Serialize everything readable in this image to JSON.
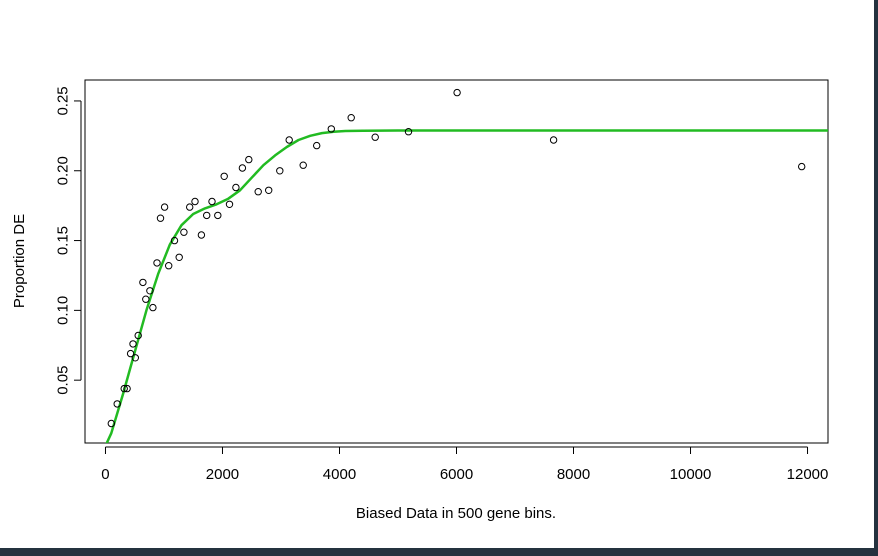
{
  "chart_data": {
    "type": "scatter",
    "title": "",
    "xlabel": "Biased Data in 500 gene bins.",
    "ylabel": "Proportion DE",
    "xlim": [
      -350,
      12350
    ],
    "ylim": [
      0.005,
      0.265
    ],
    "xticks": [
      0,
      2000,
      4000,
      6000,
      8000,
      10000,
      12000
    ],
    "xtick_labels": [
      "0",
      "2000",
      "4000",
      "6000",
      "8000",
      "10000",
      "12000"
    ],
    "yticks": [
      0.05,
      0.1,
      0.15,
      0.2,
      0.25
    ],
    "ytick_labels": [
      "0.05",
      "0.10",
      "0.15",
      "0.20",
      "0.25"
    ],
    "grid": false,
    "legend": "none",
    "colors": {
      "points": "#000000",
      "fit": "#22bb22",
      "axes": "#000000"
    },
    "series": [
      {
        "kind": "points",
        "x": [
          100,
          200,
          320,
          370,
          430,
          470,
          510,
          560,
          640,
          690,
          760,
          810,
          880,
          940,
          1010,
          1080,
          1180,
          1260,
          1340,
          1440,
          1530,
          1640,
          1730,
          1820,
          1920,
          2030,
          2120,
          2230,
          2340,
          2450,
          2610,
          2790,
          2980,
          3140,
          3380,
          3610,
          3860,
          4200,
          4610,
          5180,
          6010,
          7660,
          11900
        ],
        "y": [
          0.019,
          0.033,
          0.044,
          0.044,
          0.069,
          0.076,
          0.066,
          0.082,
          0.12,
          0.108,
          0.114,
          0.102,
          0.134,
          0.166,
          0.174,
          0.132,
          0.15,
          0.138,
          0.156,
          0.174,
          0.178,
          0.154,
          0.168,
          0.178,
          0.168,
          0.196,
          0.176,
          0.188,
          0.202,
          0.208,
          0.185,
          0.186,
          0.2,
          0.222,
          0.204,
          0.218,
          0.23,
          0.238,
          0.224,
          0.228,
          0.256,
          0.222,
          0.203
        ]
      },
      {
        "kind": "fit",
        "x": [
          0,
          100,
          300,
          500,
          700,
          900,
          1100,
          1300,
          1500,
          1700,
          1900,
          2100,
          2300,
          2500,
          2700,
          2900,
          3100,
          3300,
          3500,
          3700,
          3900,
          4100,
          4400,
          5000,
          6000,
          8000,
          10000,
          12350
        ],
        "y": [
          0.003,
          0.012,
          0.04,
          0.07,
          0.1,
          0.126,
          0.147,
          0.161,
          0.169,
          0.173,
          0.176,
          0.18,
          0.186,
          0.195,
          0.204,
          0.211,
          0.217,
          0.222,
          0.225,
          0.227,
          0.228,
          0.2285,
          0.2287,
          0.2288,
          0.2288,
          0.2288,
          0.2288,
          0.2288
        ]
      }
    ]
  }
}
